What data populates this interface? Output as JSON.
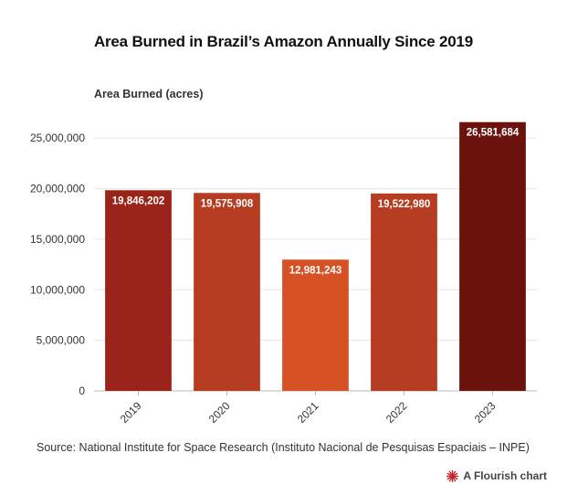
{
  "header": {
    "title": "Area Burned in Brazil’s Amazon Annually  Since 2019"
  },
  "chart_data": {
    "type": "bar",
    "title": "Area Burned in Brazil’s Amazon Annually  Since 2019",
    "ylabel": "Area Burned (acres)",
    "xlabel": "",
    "categories": [
      "2019",
      "2020",
      "2021",
      "2022",
      "2023"
    ],
    "values": [
      19846202,
      19575908,
      12981243,
      19522980,
      26581684
    ],
    "value_labels": [
      "19,846,202",
      "19,575,908",
      "12,981,243",
      "19,522,980",
      "26,581,684"
    ],
    "bar_colors": [
      "#9a2419",
      "#b63d22",
      "#d65225",
      "#b63d22",
      "#6b120d"
    ],
    "ylim": [
      0,
      28000000
    ],
    "yticks": [
      0,
      5000000,
      10000000,
      15000000,
      20000000,
      25000000
    ],
    "ytick_labels": [
      "0",
      "5,000,000",
      "10,000,000",
      "15,000,000",
      "20,000,000",
      "25,000,000"
    ],
    "grid": true
  },
  "footer": {
    "source": "Source: National Institute for Space Research (Instituto Nacional de Pesquisas Espaciais – INPE)",
    "credit": "A Flourish chart",
    "credit_icon": "flourish-logo-icon",
    "credit_icon_color": "#c4262e"
  }
}
